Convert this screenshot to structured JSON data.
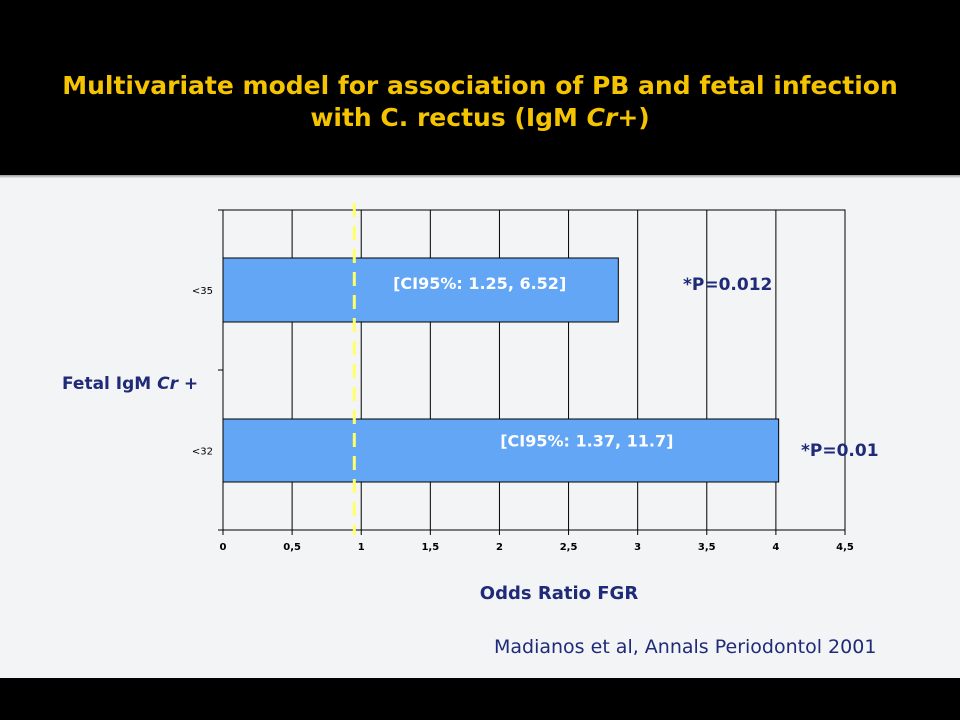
{
  "slide": {
    "title_line1": "Multivariate model for association of PB and fetal infection",
    "title_line2": "with C. rectus (IgM Cr+)",
    "citation": "Madianos et al, Annals Periodontol 2001",
    "title_color": "#f5c400",
    "text_color": "#1f2a78"
  },
  "chart_data": {
    "type": "bar",
    "orientation": "horizontal",
    "categories": [
      "<35",
      "<32"
    ],
    "values": [
      2.86,
      4.02
    ],
    "x_ticks": [
      "0",
      "0,5",
      "1",
      "1,5",
      "2",
      "2,5",
      "3",
      "3,5",
      "4",
      "4,5"
    ],
    "xlim": [
      0,
      4.5
    ],
    "xlabel": "Odds Ratio FGR",
    "ylabel": "Fetal IgM Cr +",
    "ylabel_plain": "Fetal IgM ",
    "ylabel_italic": "Cr",
    "ylabel_tail": " +",
    "reference_line": 0.95,
    "bar_labels": [
      "[CI95%: 1.25, 6.52]",
      "[CI95%: 1.37, 11.7]"
    ],
    "annotations": [
      "*P=0.012",
      "*P=0.01"
    ],
    "grid": true,
    "bar_color": "#63a6f5",
    "reference_color": "#ffff66"
  }
}
